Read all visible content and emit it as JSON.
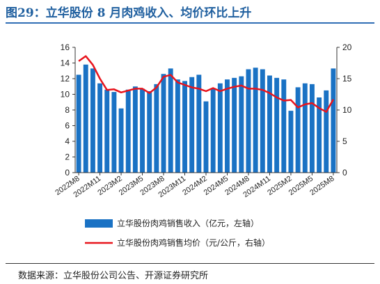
{
  "title": "图29：立华股份 8 月肉鸡收入、均价环比上升",
  "source": "数据来源：立华股份公司公告、开源证券研究所",
  "colors": {
    "bar": "#1a72c4",
    "line": "#e8141c",
    "title": "#1f5f9f"
  },
  "chart_data": {
    "type": "bar+line",
    "categories": [
      "2022M8",
      "2022M9",
      "2022M10",
      "2022M11",
      "2022M12",
      "2023M1",
      "2023M2",
      "2023M3",
      "2023M4",
      "2023M5",
      "2023M6",
      "2023M7",
      "2023M8",
      "2023M9",
      "2023M10",
      "2023M11",
      "2023M12",
      "2024M1",
      "2024M2",
      "2024M3",
      "2024M4",
      "2024M5",
      "2024M6",
      "2024M7",
      "2024M8",
      "2024M9",
      "2024M10",
      "2024M11",
      "2024M12",
      "2025M1",
      "2025M2",
      "2025M3",
      "2025M4",
      "2025M5",
      "2025M6",
      "2025M7",
      "2025M8"
    ],
    "xtick_labels": [
      "2022M8",
      "2022M11",
      "2023M2",
      "2023M5",
      "2023M8",
      "2023M11",
      "2024M2",
      "2024M5",
      "2024M8",
      "2024M11",
      "2025M2",
      "2025M5",
      "2025M8"
    ],
    "series": [
      {
        "name": "立华股份肉鸡销售收入（亿元，左轴）",
        "type": "bar",
        "axis": "left",
        "values": [
          12.5,
          13.8,
          13.3,
          11.4,
          10.6,
          10.3,
          8.2,
          10.6,
          11.0,
          10.7,
          10.4,
          11.3,
          12.6,
          13.3,
          11.9,
          11.7,
          12.2,
          12.5,
          9.1,
          10.8,
          11.4,
          11.9,
          12.1,
          12.3,
          13.2,
          13.4,
          13.2,
          12.4,
          12.1,
          11.9,
          7.9,
          10.9,
          11.4,
          11.3,
          9.6,
          10.5,
          13.3
        ]
      },
      {
        "name": "立华股份肉鸡销售均价（元/公斤，右轴）",
        "type": "line",
        "axis": "right",
        "values": [
          17.8,
          18.6,
          17.2,
          15.0,
          13.2,
          13.3,
          12.8,
          13.1,
          13.4,
          13.4,
          12.7,
          13.6,
          15.3,
          15.6,
          14.4,
          14.0,
          13.6,
          13.4,
          13.0,
          13.5,
          13.0,
          13.4,
          13.7,
          13.9,
          13.4,
          13.4,
          13.2,
          12.7,
          12.0,
          11.5,
          11.6,
          10.4,
          10.9,
          11.1,
          10.3,
          9.7,
          11.7
        ]
      }
    ],
    "y_left": {
      "min": 0,
      "max": 16,
      "ticks": [
        0,
        2,
        4,
        6,
        8,
        10,
        12,
        14,
        16
      ]
    },
    "y_right": {
      "min": 0,
      "max": 20,
      "ticks": [
        0,
        5,
        10,
        15,
        20
      ]
    },
    "legend": {
      "placement": "bottom"
    }
  }
}
